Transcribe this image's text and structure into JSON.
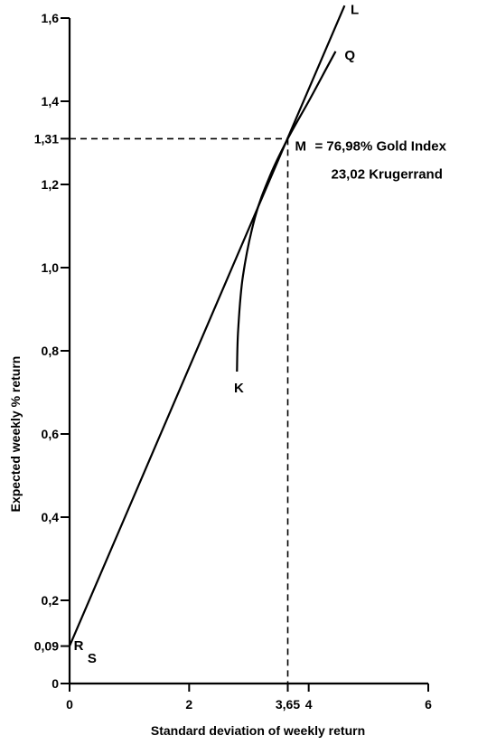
{
  "chart_data": {
    "type": "line",
    "xlabel": "Standard deviation of weekly return",
    "ylabel": "Expected weekly % return",
    "xlim": [
      0,
      6
    ],
    "ylim": [
      0,
      1.6
    ],
    "x_ticks": [
      {
        "value": 0,
        "label": "0"
      },
      {
        "value": 2,
        "label": "2"
      },
      {
        "value": 3.65,
        "label": "3,65"
      },
      {
        "value": 4,
        "label": "4"
      },
      {
        "value": 6,
        "label": "6"
      }
    ],
    "y_ticks": [
      {
        "value": 0,
        "label": "0"
      },
      {
        "value": 0.09,
        "label": "0,09"
      },
      {
        "value": 0.2,
        "label": "0,2"
      },
      {
        "value": 0.4,
        "label": "0,4"
      },
      {
        "value": 0.6,
        "label": "0,6"
      },
      {
        "value": 0.8,
        "label": "0,8"
      },
      {
        "value": 1.0,
        "label": "1,0"
      },
      {
        "value": 1.2,
        "label": "1,2"
      },
      {
        "value": 1.31,
        "label": "1,31"
      },
      {
        "value": 1.4,
        "label": "1,4"
      },
      {
        "value": 1.6,
        "label": "1,6"
      }
    ],
    "series": [
      {
        "name": "L",
        "x": [
          0,
          4.6
        ],
        "y": [
          0.09,
          1.63
        ]
      },
      {
        "name": "KQ",
        "x": [
          2.8,
          2.82,
          2.9,
          3.1,
          3.35,
          3.65,
          4.0,
          4.3,
          4.45
        ],
        "y": [
          0.75,
          0.85,
          0.98,
          1.12,
          1.22,
          1.31,
          1.4,
          1.48,
          1.52
        ]
      }
    ],
    "reference_point": {
      "x": 3.65,
      "y": 1.31,
      "label": "M"
    },
    "point_labels": [
      {
        "text": "L",
        "x": 4.7,
        "y": 1.61
      },
      {
        "text": "Q",
        "x": 4.6,
        "y": 1.5
      },
      {
        "text": "K",
        "x": 2.75,
        "y": 0.7
      },
      {
        "text": "R",
        "x": 0.07,
        "y": 0.08
      },
      {
        "text": "S",
        "x": 0.3,
        "y": 0.05
      }
    ],
    "annotations": [
      "= 76,98% Gold Index",
      "23,02 Krugerrand"
    ],
    "grid": false,
    "legend": "none"
  }
}
